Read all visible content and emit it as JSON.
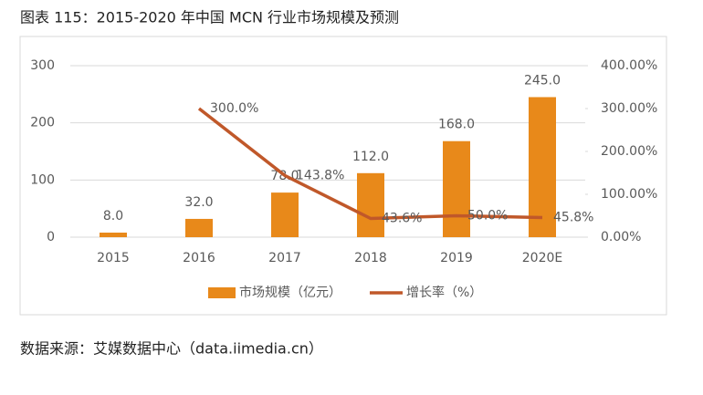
{
  "chart_data": {
    "type": "bar-line",
    "title": "图表 115：2015-2020 年中国 MCN 行业市场规模及预测",
    "source": "数据来源：艾媒数据中心（data.iimedia.cn）",
    "categories": [
      "2015",
      "2016",
      "2017",
      "2018",
      "2019",
      "2020E"
    ],
    "series": [
      {
        "name": "市场规模（亿元）",
        "type": "bar",
        "color": "#e8891a",
        "values": [
          8.0,
          32.0,
          78.0,
          112.0,
          168.0,
          245.0
        ],
        "value_labels": [
          "8.0",
          "32.0",
          "78.0",
          "112.0",
          "168.0",
          "245.0"
        ]
      },
      {
        "name": "增长率（%）",
        "type": "line",
        "axis": "y2",
        "color": "#c0582a",
        "values": [
          null,
          300.0,
          143.8,
          43.6,
          50.0,
          45.8
        ],
        "value_labels": [
          null,
          "300.0%",
          "143.8%",
          "43.6%",
          "50.0%",
          "45.8%"
        ]
      }
    ],
    "ylim": [
      0,
      300
    ],
    "yticks": [
      0,
      100,
      200,
      300
    ],
    "y2lim": [
      0,
      400
    ],
    "y2ticks": [
      {
        "value": 0,
        "label": "0.00%"
      },
      {
        "value": 100,
        "label": "100.00%"
      },
      {
        "value": 200,
        "label": "200.00%"
      },
      {
        "value": 300,
        "label": "300.00%"
      },
      {
        "value": 400,
        "label": "400.00%"
      }
    ],
    "grid": true,
    "legend": "bottom"
  }
}
